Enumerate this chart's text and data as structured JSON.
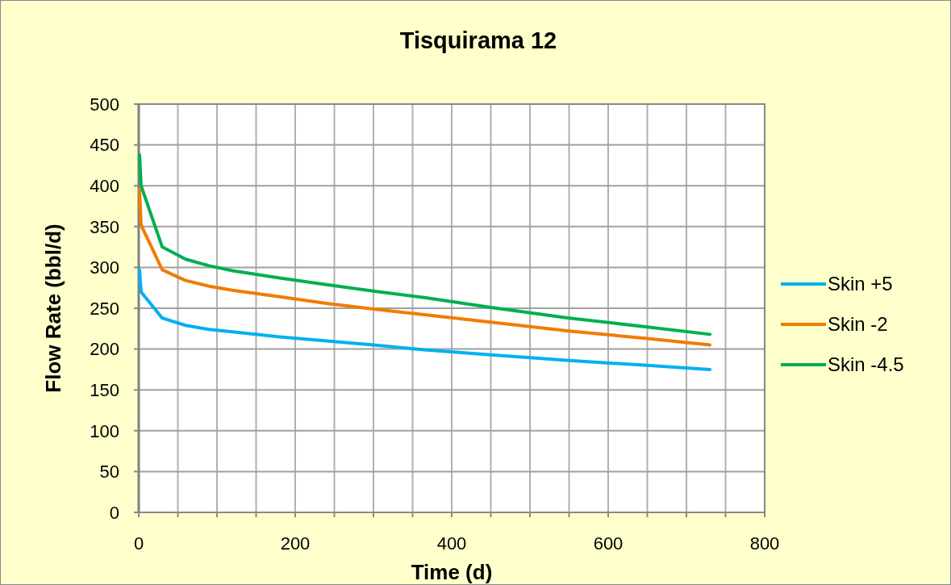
{
  "chart_data": {
    "type": "line",
    "title": "Tisquirama 12",
    "xlabel": "Time (d)",
    "ylabel": "Flow Rate (bbl/d)",
    "xlim": [
      0,
      800
    ],
    "xticks": [
      0,
      {
        "value": 50,
        "label": null
      },
      {
        "value": 100,
        "label": null
      },
      {
        "value": 150,
        "label": null
      },
      200,
      {
        "value": 250,
        "label": null
      },
      {
        "value": 300,
        "label": null
      },
      {
        "value": 350,
        "label": null
      },
      400,
      {
        "value": 450,
        "label": null
      },
      {
        "value": 500,
        "label": null
      },
      {
        "value": 550,
        "label": null
      },
      600,
      {
        "value": 650,
        "label": null
      },
      {
        "value": 700,
        "label": null
      },
      {
        "value": 750,
        "label": null
      },
      800
    ],
    "ylim": [
      0,
      500
    ],
    "yticks": [
      0,
      50,
      100,
      150,
      200,
      250,
      300,
      350,
      400,
      450,
      500
    ],
    "grid": true,
    "legend": "right",
    "marker": "none",
    "line_style": "solid",
    "x": [
      1,
      3,
      30,
      60,
      90,
      120,
      180,
      240,
      300,
      365,
      450,
      550,
      650,
      730
    ],
    "series": [
      {
        "name": "Skin +5",
        "color": "#00b0f0",
        "values": [
          297,
          270,
          238,
          229,
          224,
          221,
          215,
          210,
          205,
          199,
          193,
          186,
          180,
          175
        ]
      },
      {
        "name": "Skin -2",
        "color": "#f07c00",
        "values": [
          395,
          352,
          297,
          284,
          277,
          272,
          264,
          256,
          249,
          242,
          233,
          222,
          213,
          205
        ]
      },
      {
        "name": "Skin -4.5",
        "color": "#00b050",
        "values": [
          438,
          400,
          325,
          310,
          302,
          296,
          287,
          279,
          271,
          263,
          251,
          238,
          227,
          218
        ]
      }
    ]
  }
}
